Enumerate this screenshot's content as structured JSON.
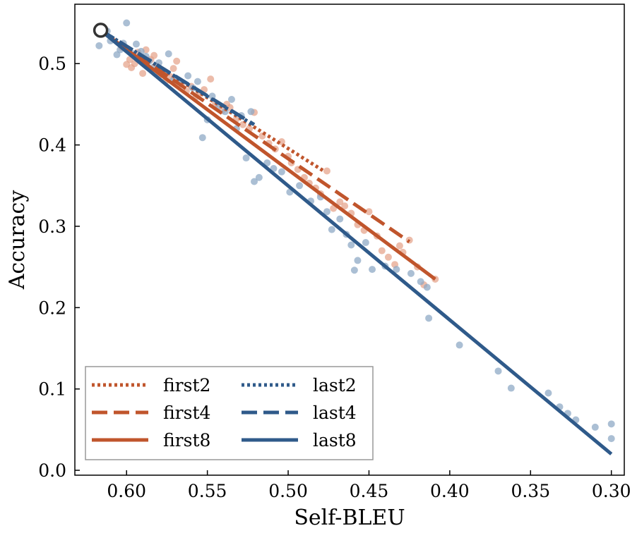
{
  "chart_data": {
    "type": "scatter",
    "title": "",
    "xlabel": "Self-BLEU",
    "ylabel": "Accuracy",
    "xlim": [
      0.632,
      0.292
    ],
    "ylim": [
      -0.006,
      0.573
    ],
    "x_inverted": true,
    "grid": false,
    "legend_position": "lower-left",
    "legend_columns": 2,
    "xticks": [
      "0.60",
      "0.55",
      "0.50",
      "0.45",
      "0.40",
      "0.35",
      "0.30"
    ],
    "yticks": [
      "0.0",
      "0.1",
      "0.2",
      "0.3",
      "0.4",
      "0.5"
    ],
    "colors": {
      "first": "#c0552c",
      "last": "#2f5a8a",
      "first_points": "#e49f86",
      "last_points": "#8fa9c5"
    },
    "baseline_point": {
      "x": 0.616,
      "y": 0.541
    },
    "series": [
      {
        "name": "first2",
        "line_style": "dotted",
        "color": "#c0552c",
        "fit": [
          [
            0.616,
            0.541
          ],
          [
            0.478,
            0.368
          ]
        ]
      },
      {
        "name": "first4",
        "line_style": "dashed",
        "color": "#c0552c",
        "fit": [
          [
            0.616,
            0.541
          ],
          [
            0.425,
            0.281
          ]
        ]
      },
      {
        "name": "first8",
        "line_style": "solid",
        "color": "#c0552c",
        "fit": [
          [
            0.616,
            0.541
          ],
          [
            0.409,
            0.235
          ]
        ]
      },
      {
        "name": "last2",
        "line_style": "dotted",
        "color": "#2f5a8a",
        "fit": [
          [
            0.616,
            0.541
          ],
          [
            0.521,
            0.424
          ]
        ]
      },
      {
        "name": "last4",
        "line_style": "dashed",
        "color": "#2f5a8a",
        "fit": [
          [
            0.616,
            0.541
          ],
          [
            0.521,
            0.425
          ]
        ]
      },
      {
        "name": "last8",
        "line_style": "solid",
        "color": "#2f5a8a",
        "fit": [
          [
            0.616,
            0.541
          ],
          [
            0.3,
            0.02
          ]
        ]
      }
    ],
    "points_first": [
      [
        0.603,
        0.52
      ],
      [
        0.6,
        0.499
      ],
      [
        0.598,
        0.505
      ],
      [
        0.597,
        0.495
      ],
      [
        0.595,
        0.5
      ],
      [
        0.593,
        0.514
      ],
      [
        0.59,
        0.488
      ],
      [
        0.588,
        0.517
      ],
      [
        0.585,
        0.505
      ],
      [
        0.583,
        0.51
      ],
      [
        0.58,
        0.485
      ],
      [
        0.578,
        0.49
      ],
      [
        0.576,
        0.478
      ],
      [
        0.573,
        0.484
      ],
      [
        0.571,
        0.494
      ],
      [
        0.569,
        0.503
      ],
      [
        0.566,
        0.475
      ],
      [
        0.563,
        0.466
      ],
      [
        0.56,
        0.472
      ],
      [
        0.557,
        0.459
      ],
      [
        0.555,
        0.463
      ],
      [
        0.552,
        0.468
      ],
      [
        0.548,
        0.481
      ],
      [
        0.545,
        0.45
      ],
      [
        0.541,
        0.442
      ],
      [
        0.538,
        0.45
      ],
      [
        0.536,
        0.446
      ],
      [
        0.532,
        0.432
      ],
      [
        0.528,
        0.425
      ],
      [
        0.524,
        0.42
      ],
      [
        0.521,
        0.44
      ],
      [
        0.516,
        0.411
      ],
      [
        0.512,
        0.402
      ],
      [
        0.508,
        0.395
      ],
      [
        0.504,
        0.404
      ],
      [
        0.5,
        0.386
      ],
      [
        0.498,
        0.378
      ],
      [
        0.494,
        0.37
      ],
      [
        0.49,
        0.36
      ],
      [
        0.487,
        0.353
      ],
      [
        0.483,
        0.347
      ],
      [
        0.48,
        0.34
      ],
      [
        0.476,
        0.368
      ],
      [
        0.472,
        0.322
      ],
      [
        0.468,
        0.33
      ],
      [
        0.465,
        0.325
      ],
      [
        0.461,
        0.316
      ],
      [
        0.457,
        0.302
      ],
      [
        0.453,
        0.295
      ],
      [
        0.45,
        0.318
      ],
      [
        0.445,
        0.288
      ],
      [
        0.442,
        0.27
      ],
      [
        0.438,
        0.262
      ],
      [
        0.434,
        0.253
      ],
      [
        0.431,
        0.276
      ],
      [
        0.429,
        0.268
      ],
      [
        0.425,
        0.283
      ],
      [
        0.42,
        0.25
      ],
      [
        0.416,
        0.228
      ],
      [
        0.409,
        0.235
      ]
    ],
    "points_last": [
      [
        0.617,
        0.522
      ],
      [
        0.612,
        0.54
      ],
      [
        0.61,
        0.528
      ],
      [
        0.606,
        0.511
      ],
      [
        0.604,
        0.517
      ],
      [
        0.602,
        0.525
      ],
      [
        0.6,
        0.55
      ],
      [
        0.597,
        0.513
      ],
      [
        0.594,
        0.524
      ],
      [
        0.591,
        0.515
      ],
      [
        0.588,
        0.509
      ],
      [
        0.586,
        0.503
      ],
      [
        0.583,
        0.496
      ],
      [
        0.58,
        0.501
      ],
      [
        0.577,
        0.49
      ],
      [
        0.574,
        0.512
      ],
      [
        0.571,
        0.48
      ],
      [
        0.567,
        0.477
      ],
      [
        0.562,
        0.485
      ],
      [
        0.559,
        0.47
      ],
      [
        0.556,
        0.478
      ],
      [
        0.553,
        0.409
      ],
      [
        0.55,
        0.431
      ],
      [
        0.547,
        0.46
      ],
      [
        0.543,
        0.448
      ],
      [
        0.539,
        0.441
      ],
      [
        0.535,
        0.456
      ],
      [
        0.532,
        0.42
      ],
      [
        0.529,
        0.436
      ],
      [
        0.526,
        0.384
      ],
      [
        0.523,
        0.441
      ],
      [
        0.521,
        0.355
      ],
      [
        0.518,
        0.36
      ],
      [
        0.513,
        0.378
      ],
      [
        0.509,
        0.371
      ],
      [
        0.504,
        0.367
      ],
      [
        0.499,
        0.342
      ],
      [
        0.493,
        0.35
      ],
      [
        0.486,
        0.331
      ],
      [
        0.48,
        0.336
      ],
      [
        0.476,
        0.318
      ],
      [
        0.473,
        0.296
      ],
      [
        0.468,
        0.309
      ],
      [
        0.464,
        0.29
      ],
      [
        0.461,
        0.277
      ],
      [
        0.459,
        0.246
      ],
      [
        0.457,
        0.258
      ],
      [
        0.452,
        0.28
      ],
      [
        0.448,
        0.247
      ],
      [
        0.44,
        0.251
      ],
      [
        0.433,
        0.247
      ],
      [
        0.424,
        0.242
      ],
      [
        0.418,
        0.232
      ],
      [
        0.414,
        0.225
      ],
      [
        0.413,
        0.187
      ],
      [
        0.394,
        0.154
      ],
      [
        0.37,
        0.122
      ],
      [
        0.362,
        0.101
      ],
      [
        0.339,
        0.095
      ],
      [
        0.332,
        0.078
      ],
      [
        0.327,
        0.07
      ],
      [
        0.322,
        0.062
      ],
      [
        0.31,
        0.053
      ],
      [
        0.3,
        0.057
      ],
      [
        0.3,
        0.039
      ]
    ]
  }
}
